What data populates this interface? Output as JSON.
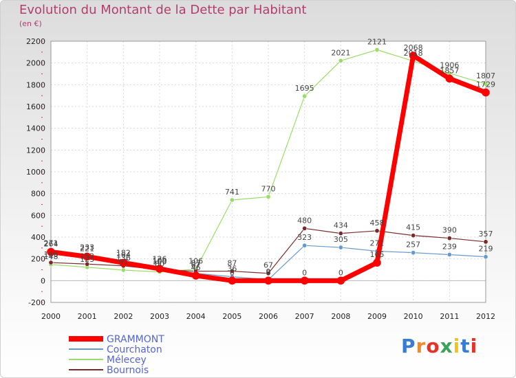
{
  "title": "Evolution du Montant de la Dette par Habitant",
  "subtitle": "(en €)",
  "logo": "Proxiti",
  "chart_data": {
    "type": "line",
    "title": "Evolution du Montant de la Dette par Habitant",
    "subtitle": "(en €)",
    "x": [
      "2000",
      "2001",
      "2002",
      "2003",
      "2004",
      "2005",
      "2006",
      "2007",
      "2008",
      "2009",
      "2010",
      "2011",
      "2012"
    ],
    "ylim": [
      -200,
      2200
    ],
    "yticks": [
      -200,
      0,
      200,
      400,
      600,
      800,
      1000,
      1200,
      1400,
      1600,
      1800,
      2000,
      2200
    ],
    "grid": true,
    "legend": "bottom-left",
    "series": [
      {
        "name": "GRAMMONT",
        "color": "#ff0000",
        "width": 7,
        "values": [
          264,
          221,
          164,
          109,
          46,
          0,
          0,
          0,
          0,
          165,
          2068,
          1857,
          1729
        ]
      },
      {
        "name": "Courchaton",
        "color": "#6699cc",
        "width": 1.2,
        "values": [
          271,
          233,
          182,
          126,
          67,
          36,
          9,
          323,
          305,
          271,
          257,
          239,
          219
        ]
      },
      {
        "name": "Mélecey",
        "color": "#99dd66",
        "width": 1.2,
        "values": [
          148,
          123,
          97,
          80,
          106,
          741,
          770,
          1695,
          2021,
          2121,
          2018,
          1906,
          1807
        ]
      },
      {
        "name": "Bournois",
        "color": "#7a2a2a",
        "width": 1.2,
        "values": [
          166,
          152,
          136,
          100,
          87,
          87,
          67,
          480,
          434,
          458,
          415,
          390,
          357
        ]
      }
    ]
  }
}
